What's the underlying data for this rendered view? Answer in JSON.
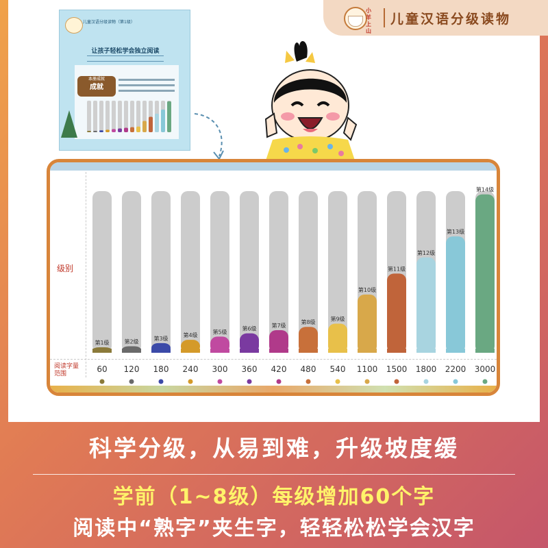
{
  "brand": {
    "name": "儿童汉语分级读物",
    "logo_text": "小羊上山"
  },
  "thumbnail": {
    "header": "儿童汉语分级读物（第1级）",
    "title": "让孩子轻松学会独立阅读",
    "badge_top": "本册成就",
    "badge_main": "成就"
  },
  "chart_data": {
    "type": "bar",
    "ylabel": "级别",
    "xlabel": "阅读字量范围",
    "categories": [
      "第1级",
      "第2级",
      "第3级",
      "第4级",
      "第5级",
      "第6级",
      "第7级",
      "第8级",
      "第9级",
      "第10级",
      "第11级",
      "第12级",
      "第13级",
      "第14级"
    ],
    "values": [
      60,
      120,
      180,
      240,
      300,
      360,
      420,
      480,
      540,
      1100,
      1500,
      1800,
      2200,
      3000
    ],
    "value_labels": [
      "60",
      "120",
      "180",
      "240",
      "300",
      "360",
      "420",
      "480",
      "540",
      "1100",
      "1500",
      "1800",
      "2200",
      "3000"
    ],
    "fill_fraction": [
      0.02,
      0.04,
      0.06,
      0.08,
      0.1,
      0.12,
      0.14,
      0.16,
      0.18,
      0.36,
      0.49,
      0.59,
      0.72,
      0.98
    ],
    "colors": [
      "#8b7a3a",
      "#6a6a6a",
      "#3b4aa8",
      "#d49a2a",
      "#c04aa0",
      "#7a3aa0",
      "#b03a8a",
      "#c8703a",
      "#e8c04a",
      "#d8a84a",
      "#c0643a",
      "#a8d4e0",
      "#88c8d8",
      "#6aa882"
    ],
    "track_color": "#cccccc",
    "grid": false
  },
  "slogan": {
    "line1": "科学分级，从易到难，升级坡度缓",
    "line2": "学前（1~8级）每级增加60个字",
    "line3": "阅读中“熟字”夹生字，轻轻松松学会汉字"
  }
}
